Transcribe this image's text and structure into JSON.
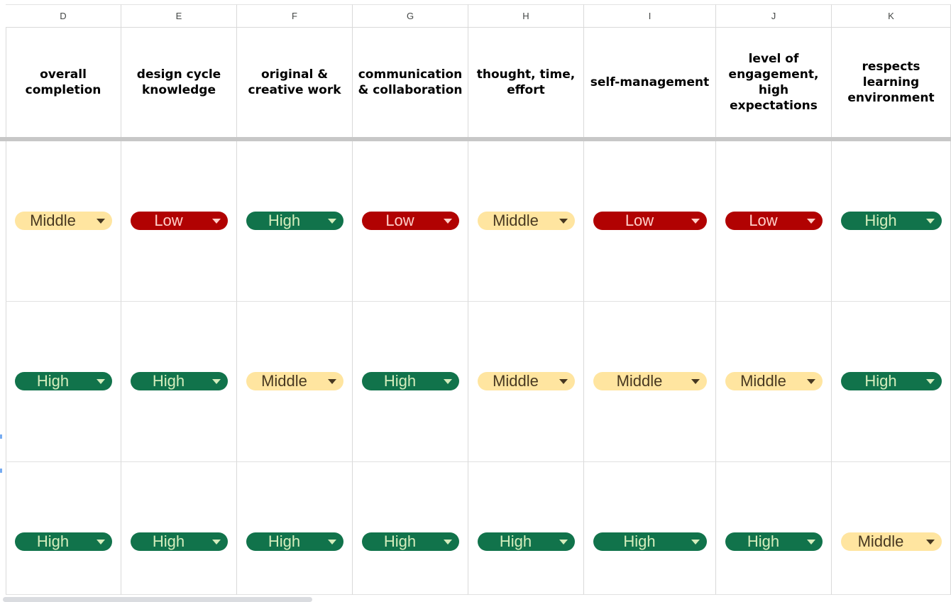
{
  "columns": [
    {
      "letter": "D",
      "header": "overall completion"
    },
    {
      "letter": "E",
      "header": "design cycle knowledge"
    },
    {
      "letter": "F",
      "header": "original & creative work"
    },
    {
      "letter": "G",
      "header": "communication & collaboration"
    },
    {
      "letter": "H",
      "header": "thought, time, effort"
    },
    {
      "letter": "I",
      "header": "self-management"
    },
    {
      "letter": "J",
      "header": "level of engagement, high expectations"
    },
    {
      "letter": "K",
      "header": "respects learning environment"
    }
  ],
  "rows": [
    [
      "Middle",
      "Low",
      "High",
      "Low",
      "Middle",
      "Low",
      "Low",
      "High"
    ],
    [
      "High",
      "High",
      "Middle",
      "High",
      "Middle",
      "Middle",
      "Middle",
      "High"
    ],
    [
      "High",
      "High",
      "High",
      "High",
      "High",
      "High",
      "High",
      "Middle"
    ]
  ],
  "chip_colors": {
    "High": {
      "bg": "#11734b",
      "fg": "#d4edbc"
    },
    "Low": {
      "bg": "#b10202",
      "fg": "#ffcfc9"
    },
    "Middle": {
      "bg": "#ffe5a0",
      "fg": "#473821"
    }
  },
  "icons": {
    "chip_arrow": "dropdown-arrow-icon"
  }
}
